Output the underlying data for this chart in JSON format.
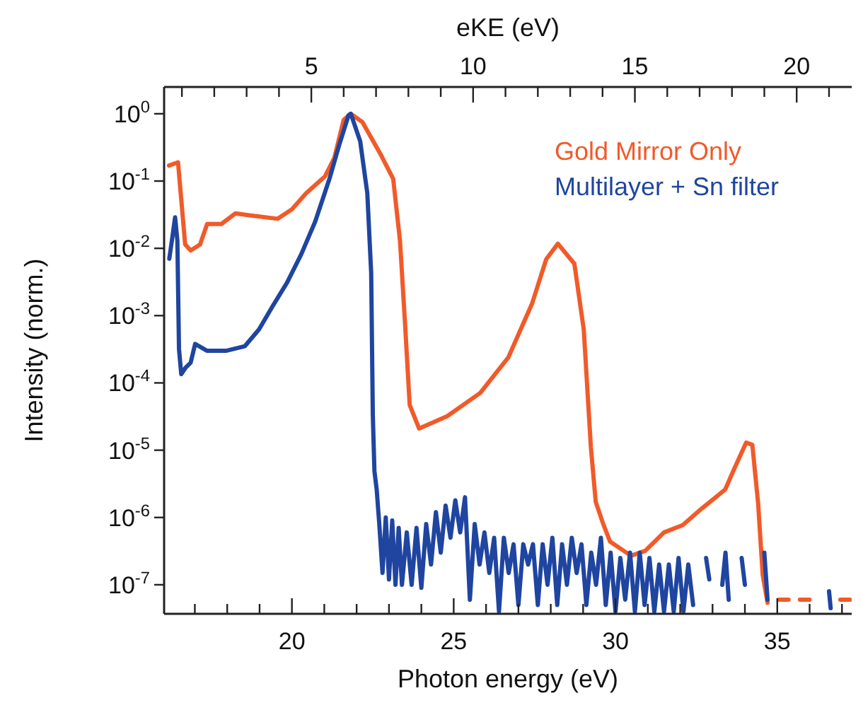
{
  "chart_data": {
    "type": "line",
    "xlabel": "Photon energy (eV)",
    "ylabel": "Intensity (norm.)",
    "x2label": "eKE (eV)",
    "log": "y",
    "xlim": [
      16.05,
      37.3
    ],
    "ylim": [
      3.7e-08,
      2.5
    ],
    "xticks": [
      {
        "value": 17,
        "label": null
      },
      {
        "value": 18,
        "label": null
      },
      {
        "value": 19,
        "label": null
      },
      20,
      {
        "value": 21,
        "label": null
      },
      {
        "value": 22,
        "label": null
      },
      {
        "value": 23,
        "label": null
      },
      {
        "value": 24,
        "label": null
      },
      25,
      {
        "value": 26,
        "label": null
      },
      {
        "value": 27,
        "label": null
      },
      {
        "value": 28,
        "label": null
      },
      {
        "value": 29,
        "label": null
      },
      30,
      {
        "value": 31,
        "label": null
      },
      {
        "value": 32,
        "label": null
      },
      {
        "value": 33,
        "label": null
      },
      {
        "value": 34,
        "label": null
      },
      35,
      {
        "value": 36,
        "label": null
      },
      {
        "value": 37,
        "label": null
      }
    ],
    "x2lim": [
      0.45,
      21.7
    ],
    "x2ticks": [
      {
        "value": 1,
        "label": null
      },
      {
        "value": 2,
        "label": null
      },
      {
        "value": 3,
        "label": null
      },
      {
        "value": 4,
        "label": null
      },
      5,
      {
        "value": 6,
        "label": null
      },
      {
        "value": 7,
        "label": null
      },
      {
        "value": 8,
        "label": null
      },
      {
        "value": 9,
        "label": null
      },
      10,
      {
        "value": 11,
        "label": null
      },
      {
        "value": 12,
        "label": null
      },
      {
        "value": 13,
        "label": null
      },
      {
        "value": 14,
        "label": null
      },
      15,
      {
        "value": 16,
        "label": null
      },
      {
        "value": 17,
        "label": null
      },
      {
        "value": 18,
        "label": null
      },
      {
        "value": 19,
        "label": null
      },
      20,
      {
        "value": 21,
        "label": null
      }
    ],
    "yticks": [
      {
        "value": 1e-07,
        "label": "10$^{-7}$"
      },
      {
        "value": 1e-06,
        "label": "10$^{-6}$"
      },
      {
        "value": 1e-05,
        "label": "10$^{-5}$"
      },
      {
        "value": 0.0001,
        "label": "10$^{-4}$"
      },
      {
        "value": 0.001,
        "label": "10$^{-3}$"
      },
      {
        "value": 0.01,
        "label": "10$^{-2}$"
      },
      {
        "value": 0.1,
        "label": "10$^{-1}$"
      },
      {
        "value": 1,
        "label": "10$^{0}$"
      }
    ],
    "legend": "top right",
    "grid": false,
    "line_style": "solid",
    "marker": "none",
    "series": [
      {
        "name": "Gold Mirror Only",
        "color": "#f15a29",
        "x": [
          16.2,
          16.48,
          16.7,
          16.87,
          17.16,
          17.38,
          17.82,
          18.25,
          18.69,
          19.56,
          20.0,
          20.44,
          21.02,
          21.31,
          21.6,
          21.82,
          22.18,
          22.76,
          23.13,
          23.34,
          23.49,
          23.64,
          23.93,
          24.8,
          25.82,
          26.69,
          27.42,
          27.86,
          28.22,
          28.73,
          29.02,
          29.24,
          29.39,
          29.61,
          29.83,
          30.48,
          30.92,
          31.5,
          32.08,
          32.66,
          33.39,
          33.68,
          34.04,
          34.23,
          34.41,
          34.55,
          34.7,
          34.9,
          35.05,
          35.35,
          35.5,
          35.7,
          36.0,
          36.5,
          36.95,
          37.25
        ],
        "values": [
          0.17,
          0.19,
          0.0115,
          0.0093,
          0.0114,
          0.023,
          0.023,
          0.033,
          0.031,
          0.0275,
          0.038,
          0.066,
          0.117,
          0.22,
          0.81,
          1.0,
          0.75,
          0.24,
          0.108,
          0.013,
          0.00085,
          4.7e-05,
          2.1e-05,
          3.2e-05,
          7.1e-05,
          0.00024,
          0.0015,
          0.0069,
          0.0117,
          0.0059,
          0.00062,
          1.1e-05,
          1.7e-06,
          8.3e-07,
          4.4e-07,
          2.7e-07,
          3.2e-07,
          6e-07,
          7.7e-07,
          1.35e-06,
          2.6e-06,
          5.4e-06,
          1.3e-05,
          1.2e-05,
          1.6e-06,
          1.4e-07,
          5.4e-08,
          null,
          6e-08,
          6e-08,
          null,
          6e-08,
          6e-08,
          null,
          6e-08,
          6e-08
        ]
      },
      {
        "name": "Multilayer + Sn filter",
        "color": "#1f45a0",
        "x": [
          16.21,
          16.29,
          16.39,
          16.46,
          16.51,
          16.58,
          16.72,
          16.87,
          17.01,
          17.38,
          17.96,
          18.54,
          18.98,
          19.41,
          19.85,
          20.29,
          20.72,
          21.16,
          21.45,
          21.75,
          21.82,
          22.11,
          22.33,
          22.45,
          22.5,
          22.55,
          22.62,
          22.7,
          22.8,
          22.9,
          23.0,
          23.1,
          23.2,
          23.3,
          23.4,
          23.55,
          23.7,
          23.85,
          24.0,
          24.15,
          24.3,
          24.45,
          24.6,
          24.75,
          24.9,
          25.05,
          25.2,
          25.35,
          25.5,
          25.65,
          25.8,
          25.95,
          26.1,
          26.25,
          26.4,
          26.55,
          26.7,
          26.85,
          27.0,
          27.15,
          27.3,
          27.45,
          27.6,
          27.75,
          27.9,
          28.05,
          28.2,
          28.35,
          28.5,
          28.65,
          28.8,
          28.95,
          29.1,
          29.25,
          29.4,
          29.55,
          29.7,
          29.85,
          30.0,
          30.15,
          30.3,
          30.45,
          30.6,
          30.75,
          30.9,
          31.05,
          31.2,
          31.35,
          31.5,
          31.65,
          31.8,
          31.95,
          32.1,
          32.25,
          32.4,
          32.6,
          32.8,
          32.9,
          33.1,
          33.3,
          33.4,
          33.5,
          33.7,
          33.9,
          34.0,
          34.3,
          34.6,
          34.7,
          35.5,
          36.6,
          36.65
        ],
        "values": [
          0.007,
          0.013,
          0.029,
          0.013,
          0.00032,
          0.000135,
          0.00017,
          0.0002,
          0.00038,
          0.0003,
          0.0003,
          0.00035,
          0.00062,
          0.0014,
          0.0031,
          0.0082,
          0.025,
          0.108,
          0.33,
          0.95,
          1.0,
          0.39,
          0.066,
          0.0043,
          3.4e-05,
          4.9e-06,
          2.6e-06,
          8e-07,
          1.5e-07,
          1e-06,
          1.2e-07,
          9e-07,
          1e-07,
          7e-07,
          1e-07,
          6e-07,
          1e-07,
          7e-07,
          9e-08,
          8e-07,
          2e-07,
          1.2e-06,
          3e-07,
          1.5e-06,
          5e-07,
          1.8e-06,
          6e-07,
          2e-06,
          6e-08,
          8e-07,
          2e-07,
          6e-07,
          1.5e-07,
          5e-07,
          4e-08,
          5e-07,
          1.5e-07,
          4e-07,
          5e-08,
          4e-07,
          2e-07,
          4e-07,
          5e-08,
          4e-07,
          1e-07,
          5e-07,
          5e-08,
          4e-07,
          1e-07,
          5e-07,
          1.5e-07,
          4e-07,
          5e-08,
          3e-07,
          1e-07,
          5e-07,
          5e-08,
          3e-07,
          4e-08,
          2.5e-07,
          6e-08,
          3e-07,
          4e-08,
          3e-07,
          5e-08,
          2.5e-07,
          4e-08,
          2e-07,
          4e-08,
          2e-07,
          4e-08,
          2.5e-07,
          4e-08,
          2e-07,
          5e-08,
          null,
          2.5e-07,
          1.2e-07,
          null,
          1e-07,
          3e-07,
          6e-08,
          null,
          2.5e-07,
          1e-07,
          null,
          3e-07,
          6e-08,
          null,
          8e-08,
          4.5e-08
        ]
      }
    ]
  }
}
